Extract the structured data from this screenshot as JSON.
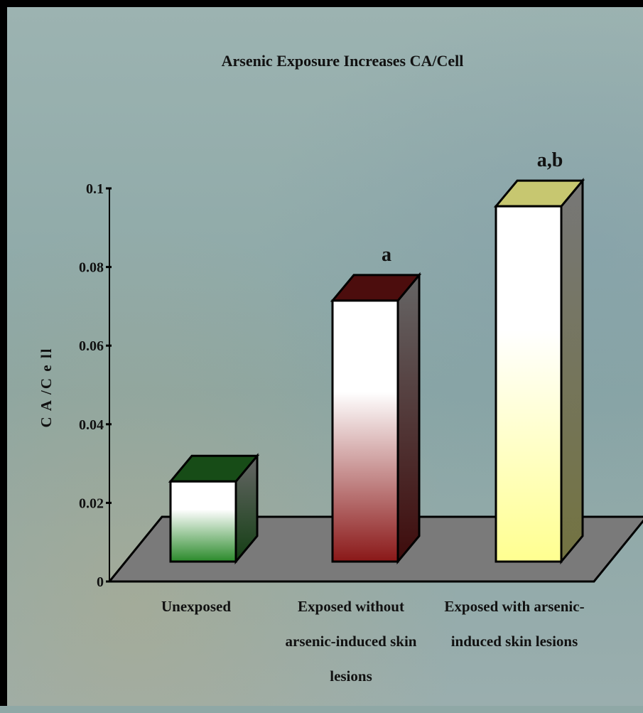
{
  "chart_data": {
    "type": "bar",
    "title": "Arsenic Exposure Increases CA/Cell",
    "ylabel": "C A /C e ll",
    "xlabel": "",
    "ylim": [
      0,
      0.1
    ],
    "yticks": [
      "0",
      "0.02",
      "0.04",
      "0.06",
      "0.08",
      "0.1"
    ],
    "grid": false,
    "style": "3d",
    "categories": [
      "Unexposed",
      "Exposed without arsenic-induced skin lesions",
      "Exposed with arsenic-induced skin lesions"
    ],
    "category_lines": [
      [
        "Unexposed"
      ],
      [
        "Exposed without",
        "arsenic-induced skin",
        "lesions"
      ],
      [
        "Exposed with arsenic-",
        "induced skin lesions"
      ]
    ],
    "values": [
      0.024,
      0.07,
      0.094
    ],
    "annotations": [
      "",
      "a",
      "a,b"
    ],
    "colors": [
      "#2a8a2a",
      "#8a1818",
      "#ffff90"
    ],
    "floor_color": "#7a7a7a",
    "background_color": "#8fa8a6"
  }
}
